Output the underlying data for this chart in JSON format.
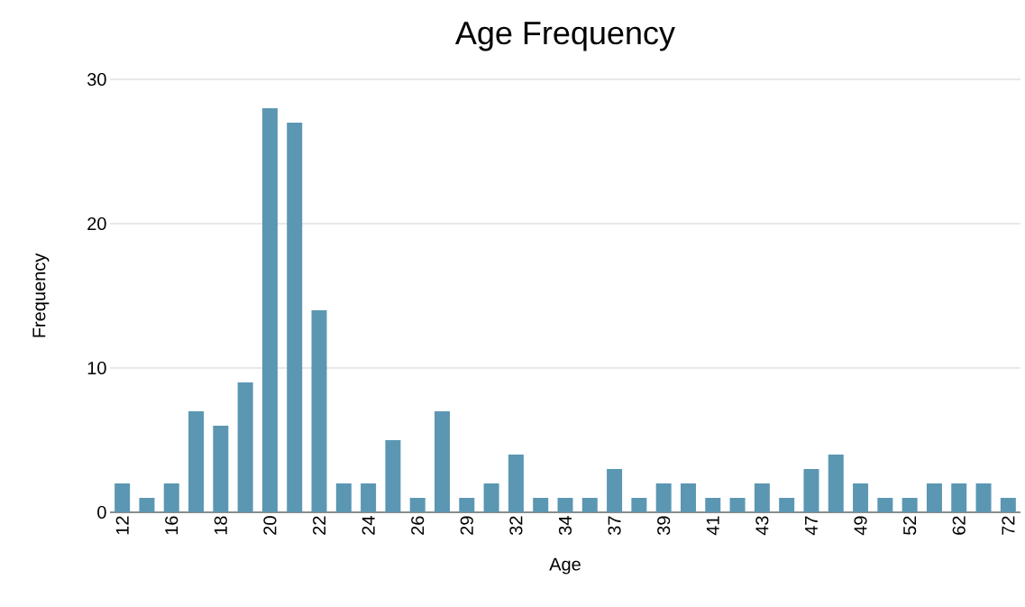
{
  "chart_data": {
    "type": "bar",
    "title": "Age Frequency",
    "xlabel": "Age",
    "ylabel": "Frequency",
    "categories": [
      "12",
      null,
      "16",
      null,
      "18",
      null,
      "20",
      null,
      "22",
      null,
      "24",
      null,
      "26",
      null,
      "29",
      null,
      "32",
      null,
      "34",
      null,
      "37",
      null,
      "39",
      null,
      "41",
      null,
      "43",
      null,
      "47",
      null,
      "49",
      null,
      "52",
      null,
      "62",
      null,
      "72"
    ],
    "values": [
      2,
      1,
      2,
      7,
      6,
      9,
      28,
      27,
      14,
      2,
      2,
      5,
      1,
      7,
      1,
      2,
      4,
      1,
      1,
      1,
      3,
      1,
      2,
      2,
      1,
      1,
      2,
      1,
      3,
      4,
      2,
      1,
      1,
      2,
      2,
      2,
      1
    ],
    "color": "#5b97b2",
    "ylim": [
      0,
      30
    ],
    "yticks": [
      0,
      10,
      20,
      30
    ],
    "grid": "y"
  }
}
